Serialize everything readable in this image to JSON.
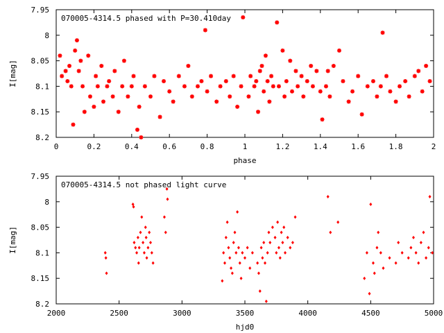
{
  "chart_data": [
    {
      "type": "scatter",
      "title": "070005-4314.5 phased with P=30.410day",
      "xlabel": "phase",
      "ylabel": "I[mag]",
      "xlim": [
        0,
        2
      ],
      "ylim": [
        7.95,
        8.2
      ],
      "y_inverted": true,
      "x_ticks": [
        "0",
        "0.2",
        "0.4",
        "0.6",
        "0.8",
        "1",
        "1.2",
        "1.4",
        "1.6",
        "1.8",
        "2"
      ],
      "x_tick_values": [
        0,
        0.2,
        0.4,
        0.6,
        0.8,
        1,
        1.2,
        1.4,
        1.6,
        1.8,
        2
      ],
      "y_ticks": [
        "7.95",
        "8",
        "8.05",
        "8.1",
        "8.15",
        "8.2"
      ],
      "y_tick_values": [
        7.95,
        8,
        8.05,
        8.1,
        8.15,
        8.2
      ],
      "grid": false,
      "marker_color": "#ff0000",
      "series": [
        {
          "x": [
            0.02,
            0.03,
            0.05,
            0.06,
            0.07,
            0.08,
            0.09,
            0.1,
            0.11,
            0.12,
            0.13,
            0.14,
            0.15,
            0.17,
            0.18,
            0.2,
            0.21,
            0.22,
            0.24,
            0.25,
            0.27,
            0.28,
            0.3,
            0.31,
            0.33,
            0.35,
            0.36,
            0.38,
            0.4,
            0.41,
            0.43,
            0.44,
            0.45,
            0.47,
            0.5,
            0.52,
            0.55,
            0.57,
            0.6,
            0.62,
            0.65,
            0.68,
            0.7,
            0.72,
            0.75,
            0.77,
            0.79,
            0.8,
            0.82,
            0.85,
            0.87,
            0.9,
            0.92,
            0.94,
            0.96,
            0.98,
            0.99,
            1.02,
            1.03,
            1.05,
            1.06,
            1.07,
            1.08,
            1.09,
            1.1,
            1.11,
            1.12,
            1.13,
            1.14,
            1.15,
            1.17,
            1.18,
            1.2,
            1.21,
            1.22,
            1.24,
            1.25,
            1.27,
            1.28,
            1.3,
            1.31,
            1.33,
            1.35,
            1.36,
            1.38,
            1.4,
            1.41,
            1.43,
            1.44,
            1.45,
            1.47,
            1.5,
            1.52,
            1.55,
            1.57,
            1.6,
            1.62,
            1.65,
            1.68,
            1.7,
            1.72,
            1.73,
            1.75,
            1.77,
            1.8,
            1.82,
            1.85,
            1.87,
            1.9,
            1.92,
            1.94,
            1.96,
            1.98
          ],
          "y": [
            8.04,
            8.08,
            8.07,
            8.09,
            8.06,
            8.1,
            8.175,
            8.03,
            8.01,
            8.07,
            8.05,
            8.1,
            8.15,
            8.04,
            8.12,
            8.14,
            8.08,
            8.1,
            8.06,
            8.13,
            8.1,
            8.09,
            8.12,
            8.07,
            8.15,
            8.1,
            8.05,
            8.12,
            8.1,
            8.08,
            8.185,
            8.14,
            8.2,
            8.1,
            8.12,
            8.08,
            8.16,
            8.09,
            8.11,
            8.13,
            8.08,
            8.1,
            8.06,
            8.12,
            8.1,
            8.09,
            7.99,
            8.11,
            8.08,
            8.13,
            8.1,
            8.09,
            8.12,
            8.08,
            8.14,
            8.1,
            7.965,
            8.12,
            8.08,
            8.1,
            8.09,
            8.15,
            8.07,
            8.06,
            8.11,
            8.04,
            8.09,
            8.13,
            8.08,
            8.1,
            7.975,
            8.1,
            8.03,
            8.12,
            8.09,
            8.05,
            8.11,
            8.07,
            8.1,
            8.08,
            8.12,
            8.09,
            8.06,
            8.1,
            8.07,
            8.11,
            8.165,
            8.1,
            8.07,
            8.12,
            8.06,
            8.03,
            8.09,
            8.13,
            8.11,
            8.08,
            8.155,
            8.1,
            8.09,
            8.12,
            8.1,
            7.995,
            8.08,
            8.11,
            8.13,
            8.1,
            8.09,
            8.12,
            8.08,
            8.07,
            8.11,
            8.06,
            8.09
          ]
        }
      ]
    },
    {
      "type": "scatter",
      "title": "070005-4314.5 not phased light curve",
      "xlabel": "hjd0",
      "ylabel": "I[mag]",
      "xlim": [
        2000,
        5000
      ],
      "ylim": [
        7.95,
        8.2
      ],
      "y_inverted": true,
      "x_ticks": [
        "2000",
        "2500",
        "3000",
        "3500",
        "4000",
        "4500",
        "5000"
      ],
      "x_tick_values": [
        2000,
        2500,
        3000,
        3500,
        4000,
        4500,
        5000
      ],
      "y_ticks": [
        "7.95",
        "8",
        "8.05",
        "8.1",
        "8.15",
        "8.2"
      ],
      "y_tick_values": [
        7.95,
        8,
        8.05,
        8.1,
        8.15,
        8.2
      ],
      "grid": false,
      "marker_color": "#ff0000",
      "series": [
        {
          "x": [
            2390,
            2395,
            2400,
            2610,
            2615,
            2620,
            2630,
            2640,
            2650,
            2655,
            2660,
            2670,
            2680,
            2690,
            2700,
            2710,
            2715,
            2720,
            2730,
            2740,
            2750,
            2760,
            2770,
            2860,
            2870,
            2880,
            2885,
            3320,
            3330,
            3340,
            3350,
            3360,
            3370,
            3380,
            3390,
            3400,
            3410,
            3420,
            3430,
            3440,
            3450,
            3460,
            3470,
            3480,
            3500,
            3520,
            3540,
            3560,
            3600,
            3610,
            3620,
            3630,
            3640,
            3650,
            3660,
            3670,
            3680,
            3690,
            3700,
            3720,
            3740,
            3750,
            3760,
            3770,
            3780,
            3790,
            3800,
            3810,
            3820,
            3840,
            3860,
            3880,
            3900,
            4160,
            4180,
            4240,
            4450,
            4470,
            4490,
            4500,
            4520,
            4530,
            4550,
            4560,
            4580,
            4600,
            4650,
            4700,
            4720,
            4750,
            4800,
            4820,
            4840,
            4860,
            4880,
            4900,
            4920,
            4940,
            4960,
            4970,
            4990
          ],
          "y": [
            8.1,
            8.11,
            8.14,
            8.005,
            8.01,
            8.08,
            8.09,
            8.1,
            8.07,
            8.12,
            8.09,
            8.06,
            8.03,
            8.08,
            8.1,
            8.05,
            8.07,
            8.11,
            8.09,
            8.06,
            8.08,
            8.1,
            8.12,
            8.03,
            8.06,
            7.975,
            7.995,
            8.155,
            8.1,
            8.12,
            8.07,
            8.04,
            8.09,
            8.11,
            8.13,
            8.14,
            8.08,
            8.06,
            8.1,
            8.02,
            8.09,
            8.12,
            8.15,
            8.1,
            8.11,
            8.09,
            8.13,
            8.1,
            8.12,
            8.14,
            8.175,
            8.09,
            8.11,
            8.08,
            8.12,
            8.195,
            8.1,
            8.06,
            8.08,
            8.05,
            8.07,
            8.1,
            8.04,
            8.09,
            8.11,
            8.06,
            8.08,
            8.05,
            8.1,
            8.07,
            8.09,
            8.08,
            8.03,
            7.99,
            8.06,
            8.04,
            8.15,
            8.1,
            8.18,
            8.005,
            8.12,
            8.14,
            8.09,
            8.06,
            8.1,
            8.13,
            8.11,
            8.12,
            8.08,
            8.1,
            8.11,
            8.09,
            8.07,
            8.1,
            8.12,
            8.08,
            8.06,
            8.11,
            8.09,
            7.99,
            8.1
          ]
        }
      ]
    }
  ]
}
